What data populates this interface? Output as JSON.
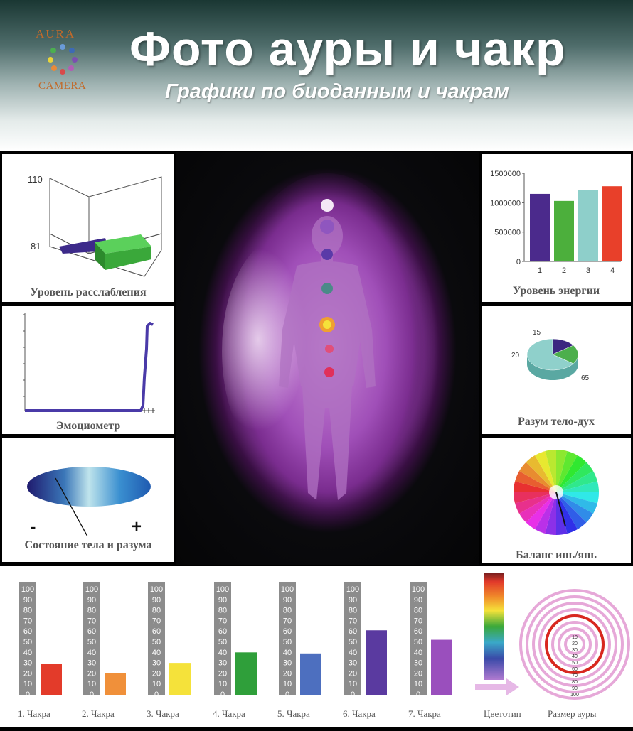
{
  "header": {
    "logo_top": "AURA",
    "logo_bottom": "CAMERA",
    "title": "Фото  ауры и чакр",
    "subtitle": "Графики по биоданным и чакрам"
  },
  "panels": {
    "relaxation": {
      "caption": "Уровень расслабления",
      "y_max": "110",
      "y_min": "81"
    },
    "emotiometer": {
      "caption": "Эмоциометр"
    },
    "body_mind": {
      "caption": "Состояние тела и разума",
      "minus": "-",
      "plus": "+"
    },
    "energy": {
      "caption": "Уровень энергии"
    },
    "mind_body_spirit": {
      "caption": "Разум тело-дух"
    },
    "yin_yang": {
      "caption": "Баланс инь/янь"
    }
  },
  "chart_data": [
    {
      "type": "bar",
      "title": "Уровень энергии",
      "categories": [
        "1",
        "2",
        "3",
        "4"
      ],
      "values": [
        1150000,
        1030000,
        1210000,
        1280000
      ],
      "colors": [
        "#4b2a8c",
        "#4caf3c",
        "#8ecfca",
        "#e8402a"
      ],
      "y_ticks": [
        "0",
        "500000",
        "1000000",
        "1500000"
      ],
      "ylim": [
        0,
        1500000
      ]
    },
    {
      "type": "pie",
      "title": "Разум тело-дух",
      "values": [
        15,
        20,
        65
      ],
      "labels": [
        "15",
        "20",
        "65"
      ],
      "colors": [
        "#3b2780",
        "#4caf4c",
        "#8fd0cb"
      ]
    },
    {
      "type": "bar",
      "title": "Уровень расслабления",
      "values": [
        84,
        88
      ],
      "colors": [
        "#3d2a8a",
        "#3aa83a"
      ],
      "ylim": [
        81,
        110
      ]
    },
    {
      "type": "line",
      "title": "Эмоциометр",
      "note": "flat line then sharp rise at the end"
    },
    {
      "type": "bar",
      "title": "Чакры",
      "categories": [
        "1. Чакра",
        "2. Чакра",
        "3. Чакра",
        "4. Чакра",
        "5. Чакра",
        "6. Чакра",
        "7. Чакра"
      ],
      "values": [
        30,
        21,
        31,
        41,
        40,
        62,
        53
      ],
      "colors": [
        "#e33b2a",
        "#f0903a",
        "#f5e23a",
        "#2f9f3a",
        "#4d6fbf",
        "#5a3aa0",
        "#9a4fbd"
      ],
      "y_ticks": [
        "100",
        "90",
        "80",
        "70",
        "60",
        "50",
        "40",
        "30",
        "20",
        "10",
        "0"
      ],
      "ylim": [
        0,
        100
      ]
    }
  ],
  "bottom": {
    "color_type_label": "Цветотип",
    "aura_size_label": "Размер ауры",
    "aura_ticks": [
      "10",
      "20",
      "30",
      "40",
      "50",
      "60",
      "70",
      "80",
      "90",
      "100"
    ]
  }
}
